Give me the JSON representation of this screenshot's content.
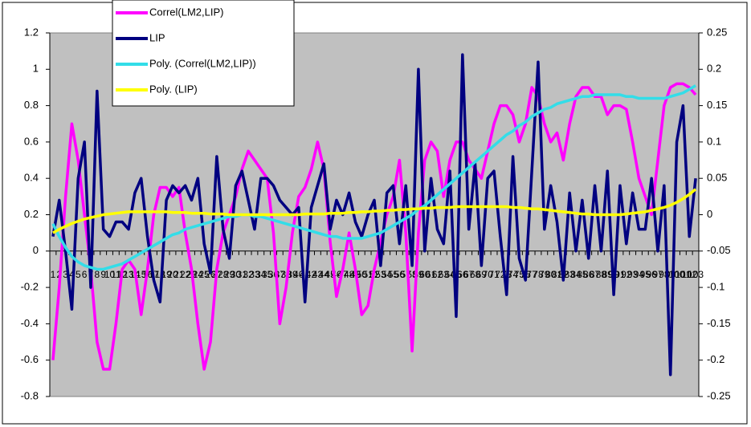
{
  "chart_data": {
    "type": "line",
    "categories": [
      "1",
      "2",
      "3",
      "4",
      "5",
      "6",
      "7",
      "8",
      "9",
      "10",
      "11",
      "12",
      "13",
      "14",
      "15",
      "16",
      "17",
      "18",
      "19",
      "20",
      "21",
      "22",
      "23",
      "24",
      "25",
      "26",
      "27",
      "28",
      "29",
      "30",
      "31",
      "32",
      "33",
      "34",
      "35",
      "36",
      "37",
      "38",
      "39",
      "40",
      "41",
      "42",
      "43",
      "44",
      "45",
      "46",
      "47",
      "48",
      "49",
      "50",
      "51",
      "52",
      "53",
      "54",
      "55",
      "56",
      "57",
      "58",
      "59",
      "60",
      "61",
      "62",
      "63",
      "64",
      "65",
      "66",
      "67",
      "68",
      "69",
      "70",
      "71",
      "72",
      "73",
      "74",
      "75",
      "76",
      "77",
      "78",
      "79",
      "80",
      "81",
      "82",
      "83",
      "84",
      "85",
      "86",
      "87",
      "88",
      "89",
      "90",
      "91",
      "92",
      "93",
      "94",
      "95",
      "96",
      "97",
      "98",
      "99",
      "100",
      "101",
      "102",
      "103"
    ],
    "ylim": [
      -0.8,
      1.2
    ],
    "yticks": [
      -0.8,
      -0.6,
      -0.4,
      -0.2,
      0,
      0.2,
      0.4,
      0.6,
      0.8,
      1,
      1.2
    ],
    "y2lim": [
      -0.25,
      0.25
    ],
    "y2ticks": [
      -0.25,
      -0.2,
      -0.15,
      -0.1,
      -0.05,
      0,
      0.05,
      0.1,
      0.15,
      0.2,
      0.25
    ],
    "legend": "top-left",
    "plot_background": "#c0c0c0",
    "series": [
      {
        "name": "Correl(LM2,LIP)",
        "color": "#ff00ff",
        "values": [
          -0.6,
          -0.2,
          0.3,
          0.7,
          0.5,
          0.2,
          -0.1,
          -0.5,
          -0.65,
          -0.65,
          -0.4,
          -0.1,
          -0.05,
          -0.1,
          -0.35,
          -0.1,
          0.2,
          0.35,
          0.35,
          0.3,
          0.35,
          0.1,
          -0.1,
          -0.4,
          -0.65,
          -0.5,
          -0.1,
          0.1,
          0.2,
          0.3,
          0.45,
          0.55,
          0.5,
          0.45,
          0.4,
          0.1,
          -0.4,
          -0.2,
          0.1,
          0.3,
          0.35,
          0.45,
          0.6,
          0.45,
          0.05,
          -0.25,
          -0.1,
          0.1,
          -0.1,
          -0.35,
          -0.3,
          -0.1,
          0.05,
          0.2,
          0.3,
          0.5,
          0.1,
          -0.55,
          0.1,
          0.5,
          0.6,
          0.55,
          0.3,
          0.5,
          0.6,
          0.6,
          0.5,
          0.45,
          0.4,
          0.55,
          0.7,
          0.8,
          0.8,
          0.75,
          0.6,
          0.7,
          0.9,
          0.85,
          0.7,
          0.6,
          0.65,
          0.5,
          0.7,
          0.85,
          0.9,
          0.9,
          0.85,
          0.85,
          0.75,
          0.8,
          0.8,
          0.78,
          0.6,
          0.4,
          0.3,
          0.2,
          0.5,
          0.8,
          0.9,
          0.92,
          0.92,
          0.9,
          0.86
        ]
      },
      {
        "name": "LIP",
        "color": "#000080",
        "axis": "y2",
        "values": [
          -0.03,
          0.02,
          -0.05,
          -0.13,
          0.05,
          0.1,
          -0.1,
          0.17,
          -0.02,
          -0.03,
          -0.01,
          -0.01,
          -0.02,
          0.03,
          0.05,
          -0.03,
          -0.09,
          -0.12,
          0.02,
          0.04,
          0.03,
          0.04,
          0.02,
          0.05,
          -0.04,
          -0.08,
          0.08,
          -0.02,
          -0.06,
          0.04,
          0.06,
          0.02,
          -0.02,
          0.05,
          0.05,
          0.04,
          0.02,
          0.01,
          0,
          0.01,
          -0.12,
          0.01,
          0.04,
          0.07,
          -0.02,
          0.02,
          0,
          0.03,
          -0.01,
          -0.03,
          0,
          0.02,
          -0.07,
          0.03,
          0.04,
          -0.04,
          0.04,
          -0.07,
          0.2,
          -0.05,
          0.05,
          -0.02,
          -0.04,
          0.06,
          -0.14,
          0.22,
          -0.02,
          0.07,
          -0.07,
          0.05,
          0.06,
          -0.03,
          -0.11,
          0.08,
          -0.06,
          -0.09,
          0.06,
          0.21,
          -0.02,
          0.04,
          -0.01,
          -0.09,
          0.03,
          -0.05,
          0.02,
          -0.06,
          0.04,
          -0.05,
          0.06,
          -0.11,
          0.04,
          -0.04,
          0.03,
          -0.02,
          -0.02,
          0.05,
          -0.05,
          0.04,
          -0.22,
          0.1,
          0.15,
          -0.03,
          0.05
        ]
      },
      {
        "name": "Poly. (Correl(LM2,LIP))",
        "color": "#33dde8",
        "values": [
          0.15,
          0.08,
          0.02,
          -0.03,
          -0.06,
          -0.08,
          -0.09,
          -0.1,
          -0.1,
          -0.09,
          -0.08,
          -0.07,
          -0.05,
          -0.03,
          -0.01,
          0.01,
          0.03,
          0.05,
          0.07,
          0.09,
          0.1,
          0.12,
          0.13,
          0.14,
          0.15,
          0.16,
          0.17,
          0.18,
          0.19,
          0.19,
          0.2,
          0.2,
          0.19,
          0.19,
          0.18,
          0.17,
          0.16,
          0.15,
          0.14,
          0.13,
          0.12,
          0.11,
          0.1,
          0.09,
          0.08,
          0.08,
          0.07,
          0.07,
          0.07,
          0.07,
          0.08,
          0.09,
          0.1,
          0.12,
          0.14,
          0.16,
          0.18,
          0.2,
          0.23,
          0.25,
          0.28,
          0.31,
          0.34,
          0.37,
          0.4,
          0.43,
          0.46,
          0.49,
          0.52,
          0.55,
          0.58,
          0.61,
          0.64,
          0.66,
          0.69,
          0.71,
          0.74,
          0.76,
          0.78,
          0.79,
          0.81,
          0.82,
          0.83,
          0.84,
          0.85,
          0.85,
          0.86,
          0.86,
          0.86,
          0.86,
          0.86,
          0.85,
          0.85,
          0.84,
          0.84,
          0.84,
          0.84,
          0.84,
          0.85,
          0.86,
          0.87,
          0.89,
          0.91
        ]
      },
      {
        "name": "Poly. (LIP)",
        "color": "#ffff00",
        "axis": "y2",
        "values": [
          -0.025,
          -0.02,
          -0.016,
          -0.012,
          -0.009,
          -0.006,
          -0.004,
          -0.002,
          0,
          0.001,
          0.002,
          0.003,
          0.004,
          0.004,
          0.004,
          0.004,
          0.004,
          0.004,
          0.004,
          0.003,
          0.003,
          0.003,
          0.002,
          0.002,
          0.002,
          0.001,
          0.001,
          0.001,
          0,
          0,
          0,
          0,
          0,
          0,
          0,
          0,
          0,
          0,
          0,
          0,
          0.001,
          0.001,
          0.001,
          0.001,
          0.002,
          0.002,
          0.002,
          0.003,
          0.003,
          0.004,
          0.004,
          0.005,
          0.005,
          0.006,
          0.006,
          0.007,
          0.007,
          0.008,
          0.008,
          0.009,
          0.009,
          0.01,
          0.01,
          0.01,
          0.011,
          0.011,
          0.011,
          0.011,
          0.011,
          0.011,
          0.011,
          0.011,
          0.011,
          0.01,
          0.01,
          0.009,
          0.008,
          0.008,
          0.007,
          0.006,
          0.005,
          0.004,
          0.003,
          0.002,
          0.001,
          0.001,
          0,
          0,
          0,
          0,
          0,
          0.001,
          0.002,
          0.003,
          0.004,
          0.006,
          0.008,
          0.01,
          0.013,
          0.017,
          0.022,
          0.028,
          0.035
        ]
      }
    ]
  }
}
